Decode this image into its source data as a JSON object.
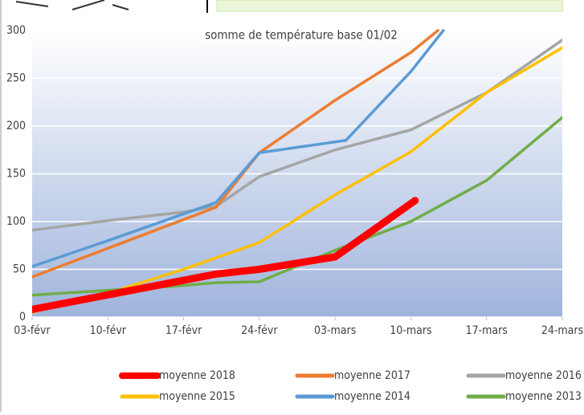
{
  "chart_data": {
    "type": "line",
    "title": "somme de température base 01/02",
    "xlim": [
      0,
      49
    ],
    "xticks": [
      {
        "value": 0,
        "label": "03-févr"
      },
      {
        "value": 7,
        "label": "10-févr"
      },
      {
        "value": 14,
        "label": "17-févr"
      },
      {
        "value": 21,
        "label": "24-févr"
      },
      {
        "value": 28,
        "label": "03-mars"
      },
      {
        "value": 35,
        "label": "10-mars"
      },
      {
        "value": 42,
        "label": "17-mars"
      },
      {
        "value": 49,
        "label": "24-mars"
      }
    ],
    "ylim": [
      0,
      300
    ],
    "yticks": [
      0,
      50,
      100,
      150,
      200,
      250,
      300
    ],
    "grid": true,
    "series": [
      {
        "name": "moyenne 2018",
        "color": "#ff0000",
        "x": [
          0,
          17,
          21,
          28,
          35.4
        ],
        "values": [
          8,
          45,
          50,
          63,
          122
        ]
      },
      {
        "name": "moyenne 2017",
        "color": "#ed7d31",
        "x": [
          0,
          7,
          17,
          21,
          28,
          35,
          37.5
        ],
        "values": [
          42,
          72,
          115,
          172,
          227,
          277,
          300
        ]
      },
      {
        "name": "moyenne 2016",
        "color": "#a5a5a5",
        "x": [
          0,
          7,
          14,
          17,
          21,
          28,
          35,
          42,
          49
        ],
        "values": [
          91,
          101,
          110,
          116,
          147,
          175,
          196,
          235,
          290
        ]
      },
      {
        "name": "moyenne 2015",
        "color": "#ffc000",
        "x": [
          0,
          7,
          14,
          21,
          28,
          35,
          42,
          49
        ],
        "values": [
          5,
          25,
          50,
          78,
          128,
          173,
          235,
          282
        ]
      },
      {
        "name": "moyenne 2014",
        "color": "#5b9bd5",
        "x": [
          0,
          7,
          17,
          21,
          29,
          35,
          38
        ],
        "values": [
          53,
          80,
          120,
          172,
          185,
          257,
          300
        ]
      },
      {
        "name": "moyenne 2013",
        "color": "#70ad47",
        "x": [
          0,
          7,
          14,
          17,
          21,
          28,
          35,
          42,
          49
        ],
        "values": [
          23,
          28,
          33,
          36,
          37,
          70,
          100,
          143,
          209
        ]
      }
    ]
  }
}
